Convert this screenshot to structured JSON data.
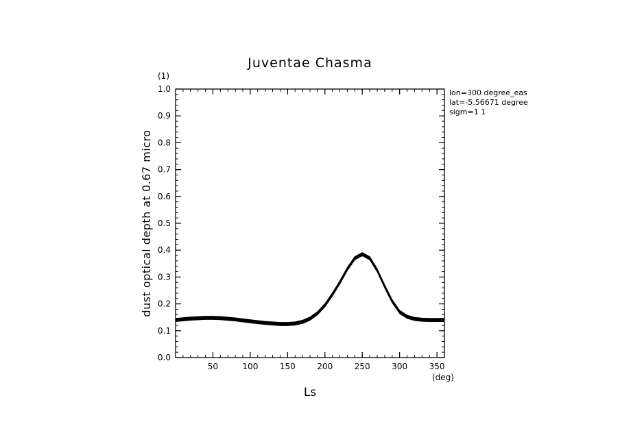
{
  "chart_data": {
    "type": "line",
    "title": "Juventae Chasma",
    "xlabel": "Ls",
    "ylabel": "dust optical depth at 0.67 micro",
    "x_unit": "(deg)",
    "y_unit": "(1)",
    "xlim": [
      0,
      360
    ],
    "ylim": [
      0,
      1.0
    ],
    "x_ticks": [
      50,
      100,
      150,
      200,
      250,
      300,
      350
    ],
    "y_ticks": [
      0.0,
      0.1,
      0.2,
      0.3,
      0.4,
      0.5,
      0.6,
      0.7,
      0.8,
      0.9,
      1.0
    ],
    "grid": false,
    "info_lines": [
      "lon=300 degree_eas",
      "lat=-5.56671 degree",
      "sigm=1 1"
    ],
    "series": [
      {
        "x": [
          0,
          20,
          40,
          50,
          60,
          80,
          100,
          120,
          140,
          150,
          160,
          170,
          180,
          190,
          200,
          210,
          220,
          230,
          240,
          250,
          260,
          270,
          280,
          290,
          300,
          310,
          320,
          330,
          340,
          350,
          360
        ],
        "y": [
          0.14,
          0.145,
          0.148,
          0.148,
          0.147,
          0.142,
          0.135,
          0.129,
          0.125,
          0.125,
          0.127,
          0.133,
          0.145,
          0.165,
          0.195,
          0.235,
          0.28,
          0.33,
          0.37,
          0.385,
          0.37,
          0.325,
          0.265,
          0.21,
          0.17,
          0.152,
          0.144,
          0.141,
          0.14,
          0.14,
          0.14
        ],
        "band_width": 0.012
      }
    ]
  }
}
